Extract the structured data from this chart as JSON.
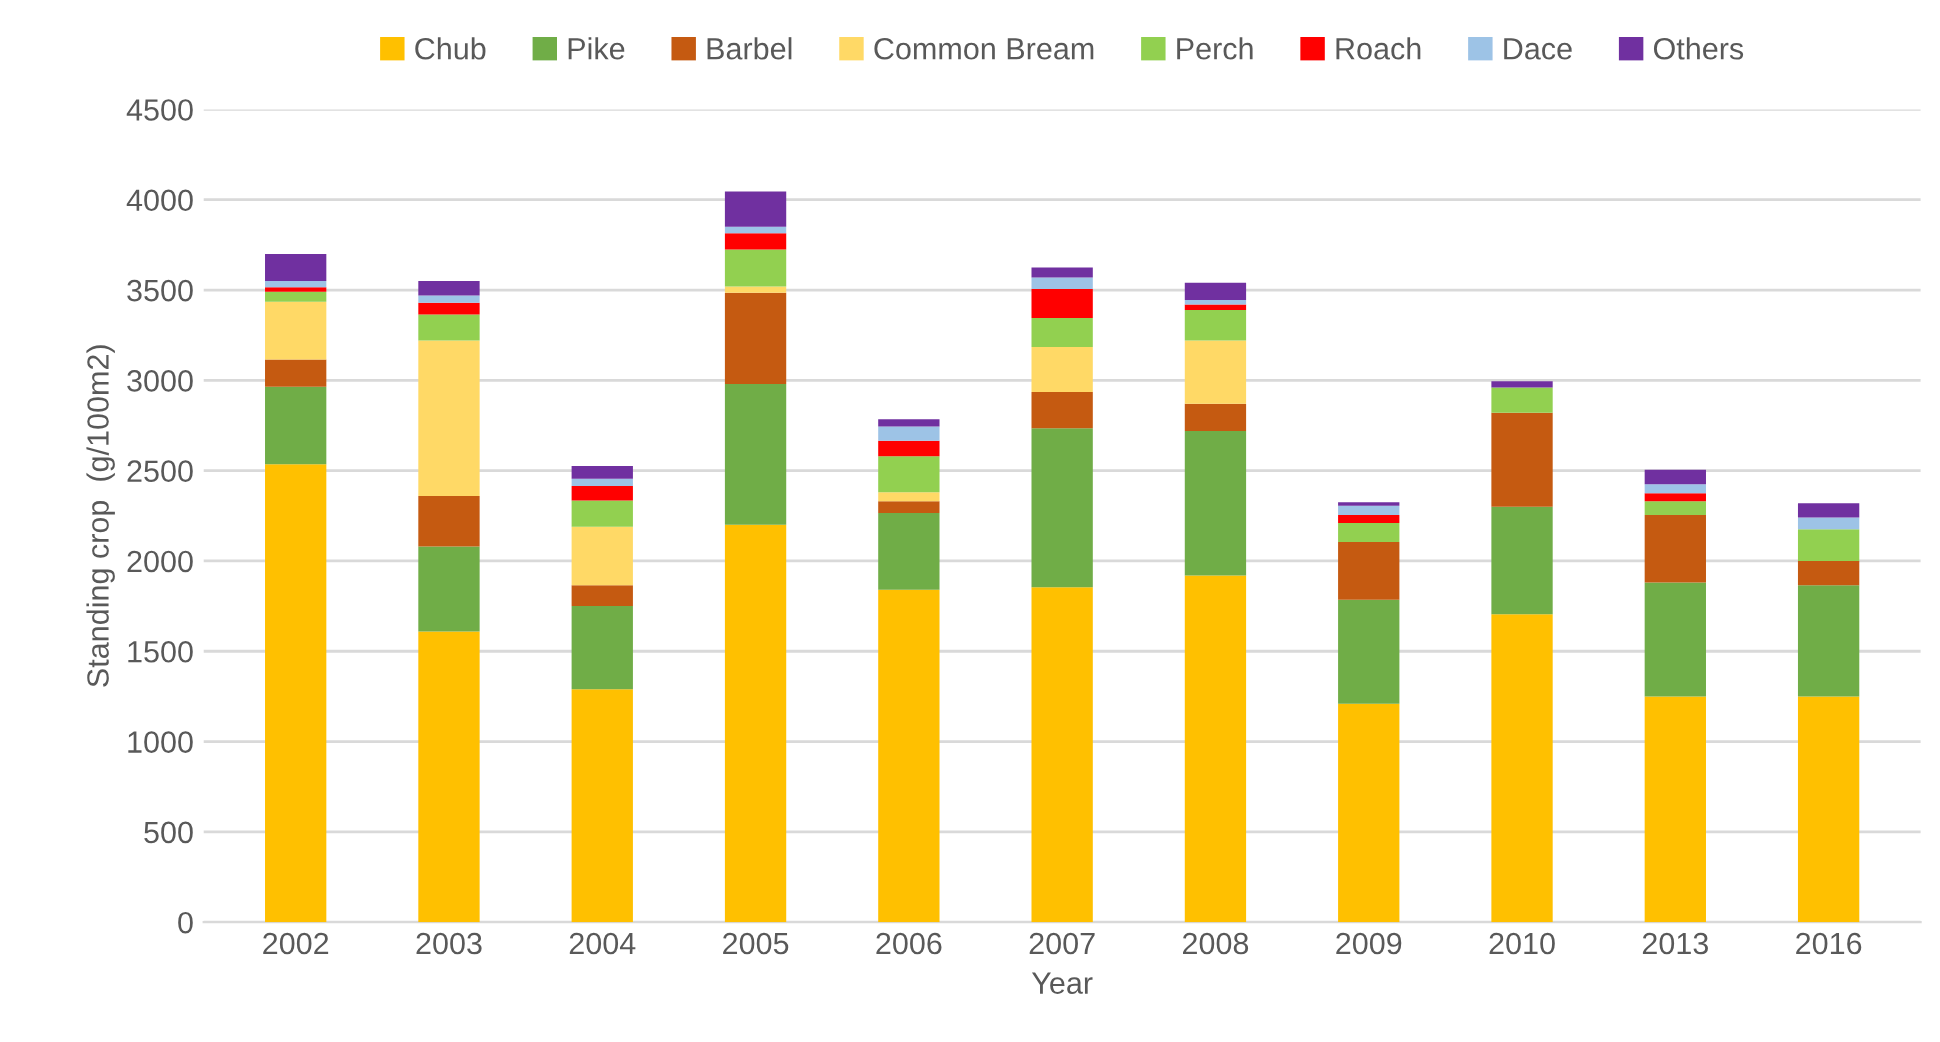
{
  "chart_data": {
    "type": "bar",
    "stacked": true,
    "xlabel": "Year",
    "ylabel": "Standing crop  (g/100m2)",
    "categories": [
      "2002",
      "2003",
      "2004",
      "2005",
      "2006",
      "2007",
      "2008",
      "2009",
      "2010",
      "2013",
      "2016"
    ],
    "series": [
      {
        "name": "Chub",
        "color": "#ffc000",
        "values": [
          2535,
          1610,
          1290,
          2200,
          1840,
          1855,
          1920,
          1210,
          1705,
          1250,
          1250
        ]
      },
      {
        "name": "Pike",
        "color": "#70ad47",
        "values": [
          430,
          470,
          460,
          780,
          425,
          880,
          800,
          575,
          595,
          630,
          615
        ]
      },
      {
        "name": "Barbel",
        "color": "#c55a11",
        "values": [
          150,
          280,
          115,
          505,
          65,
          200,
          150,
          320,
          520,
          375,
          135
        ]
      },
      {
        "name": "Common Bream",
        "color": "#ffd966",
        "values": [
          320,
          860,
          325,
          35,
          50,
          250,
          350,
          0,
          0,
          0,
          0
        ]
      },
      {
        "name": "Perch",
        "color": "#92d050",
        "values": [
          55,
          145,
          145,
          205,
          200,
          160,
          170,
          105,
          140,
          75,
          175
        ]
      },
      {
        "name": "Roach",
        "color": "#ff0000",
        "values": [
          25,
          65,
          80,
          90,
          85,
          160,
          30,
          45,
          0,
          45,
          0
        ]
      },
      {
        "name": "Dace",
        "color": "#9dc3e6",
        "values": [
          35,
          40,
          40,
          35,
          80,
          65,
          25,
          50,
          0,
          50,
          65
        ]
      },
      {
        "name": "Others",
        "color": "#7030a0",
        "values": [
          150,
          80,
          70,
          195,
          40,
          55,
          95,
          20,
          35,
          80,
          80
        ]
      }
    ],
    "ylim": [
      0,
      4500
    ],
    "yticks": [
      0,
      500,
      1000,
      1500,
      2000,
      2500,
      3000,
      3500,
      4000,
      4500
    ],
    "grid": "y",
    "legend": "top"
  }
}
